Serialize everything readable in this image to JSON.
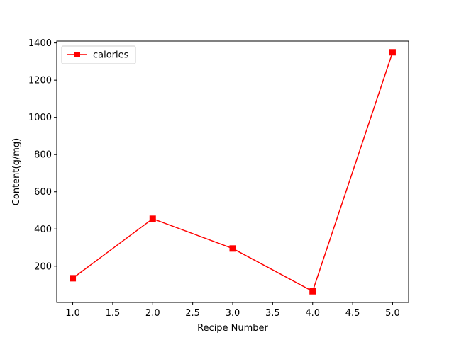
{
  "chart_data": {
    "type": "line",
    "title": "",
    "xlabel": "Recipe Number",
    "ylabel": "Content(g/mg)",
    "xlim": [
      0.8,
      5.2
    ],
    "ylim": [
      5,
      1410
    ],
    "xticks": [
      1.0,
      1.5,
      2.0,
      2.5,
      3.0,
      3.5,
      4.0,
      4.5,
      5.0
    ],
    "xtick_labels": [
      "1.0",
      "1.5",
      "2.0",
      "2.5",
      "3.0",
      "3.5",
      "4.0",
      "4.5",
      "5.0"
    ],
    "yticks": [
      200,
      400,
      600,
      800,
      1000,
      1200,
      1400
    ],
    "ytick_labels": [
      "200",
      "400",
      "600",
      "800",
      "1000",
      "1200",
      "1400"
    ],
    "grid": false,
    "legend_position": "top-left",
    "series": [
      {
        "name": "calories",
        "color": "#ff0000",
        "marker": "square",
        "x": [
          1,
          2,
          3,
          4,
          5
        ],
        "y": [
          135,
          455,
          295,
          65,
          1350
        ]
      }
    ]
  }
}
